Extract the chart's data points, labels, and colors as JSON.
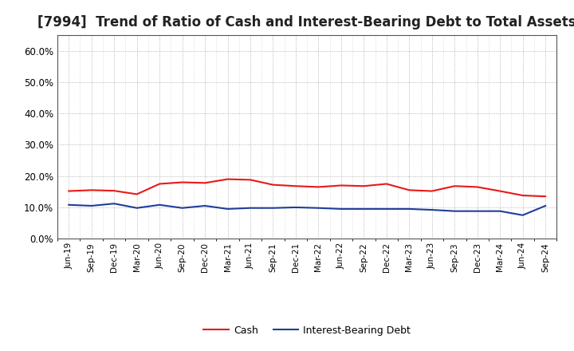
{
  "title": "[7994]  Trend of Ratio of Cash and Interest-Bearing Debt to Total Assets",
  "x_labels": [
    "Jun-19",
    "Sep-19",
    "Dec-19",
    "Mar-20",
    "Jun-20",
    "Sep-20",
    "Dec-20",
    "Mar-21",
    "Jun-21",
    "Sep-21",
    "Dec-21",
    "Mar-22",
    "Jun-22",
    "Sep-22",
    "Dec-22",
    "Mar-23",
    "Jun-23",
    "Sep-23",
    "Dec-23",
    "Mar-24",
    "Jun-24",
    "Sep-24"
  ],
  "cash_values": [
    15.2,
    15.5,
    15.3,
    14.2,
    17.5,
    18.0,
    17.8,
    19.0,
    18.8,
    17.2,
    16.8,
    16.5,
    17.0,
    16.8,
    17.5,
    15.5,
    15.2,
    16.8,
    16.5,
    15.2,
    13.8,
    13.5
  ],
  "debt_values": [
    10.8,
    10.5,
    11.2,
    9.8,
    10.8,
    9.8,
    10.5,
    9.5,
    9.8,
    9.8,
    10.0,
    9.8,
    9.5,
    9.5,
    9.5,
    9.5,
    9.2,
    8.8,
    8.8,
    8.8,
    7.5,
    10.5
  ],
  "cash_color": "#e8191a",
  "debt_color": "#1f3e9b",
  "ylim": [
    0,
    65
  ],
  "yticks": [
    0,
    10,
    20,
    30,
    40,
    50,
    60
  ],
  "ytick_labels": [
    "0.0%",
    "10.0%",
    "20.0%",
    "30.0%",
    "40.0%",
    "50.0%",
    "60.0%"
  ],
  "grid_color": "#999999",
  "bg_color": "#ffffff",
  "legend_cash": "Cash",
  "legend_debt": "Interest-Bearing Debt",
  "title_fontsize": 12,
  "linewidth": 1.5
}
